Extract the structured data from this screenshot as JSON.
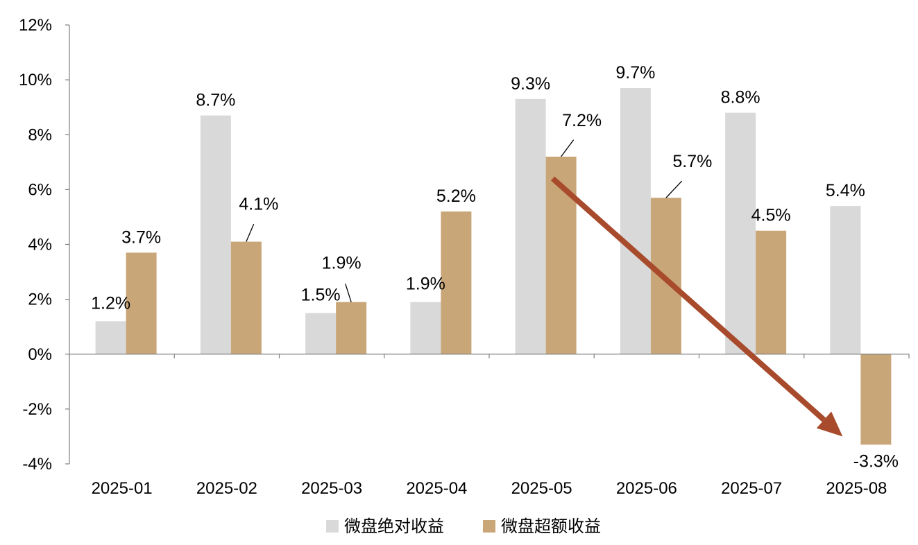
{
  "chart_data": {
    "type": "bar",
    "categories": [
      "2025-01",
      "2025-02",
      "2025-03",
      "2025-04",
      "2025-05",
      "2025-06",
      "2025-07",
      "2025-08"
    ],
    "series": [
      {
        "name": "微盘绝对收益",
        "color": "#d9d9d9",
        "values": [
          1.2,
          8.7,
          1.5,
          1.9,
          9.3,
          9.7,
          8.8,
          5.4
        ]
      },
      {
        "name": "微盘超额收益",
        "color": "#c9a677",
        "values": [
          3.7,
          4.1,
          1.9,
          5.2,
          7.2,
          5.7,
          4.5,
          -3.3
        ]
      }
    ],
    "labels": [
      [
        "1.2%",
        "8.7%",
        "1.5%",
        "1.9%",
        "9.3%",
        "9.7%",
        "8.8%",
        "5.4%"
      ],
      [
        "3.7%",
        "4.1%",
        "1.9%",
        "5.2%",
        "7.2%",
        "5.7%",
        "4.5%",
        "-3.3%"
      ]
    ],
    "ylim": [
      -4,
      12
    ],
    "yticks": [
      -4,
      -2,
      0,
      2,
      4,
      6,
      8,
      10,
      12
    ],
    "ytick_labels": [
      "-4%",
      "-2%",
      "0%",
      "2%",
      "4%",
      "6%",
      "8%",
      "10%",
      "12%"
    ],
    "grid": false,
    "legend_position": "bottom-center",
    "annotation": {
      "type": "trend-arrow",
      "color": "#a84a2c",
      "from": {
        "x": "2025-05",
        "y": 6.4
      },
      "to": {
        "x": "2025-08",
        "y": -3.0
      }
    }
  }
}
